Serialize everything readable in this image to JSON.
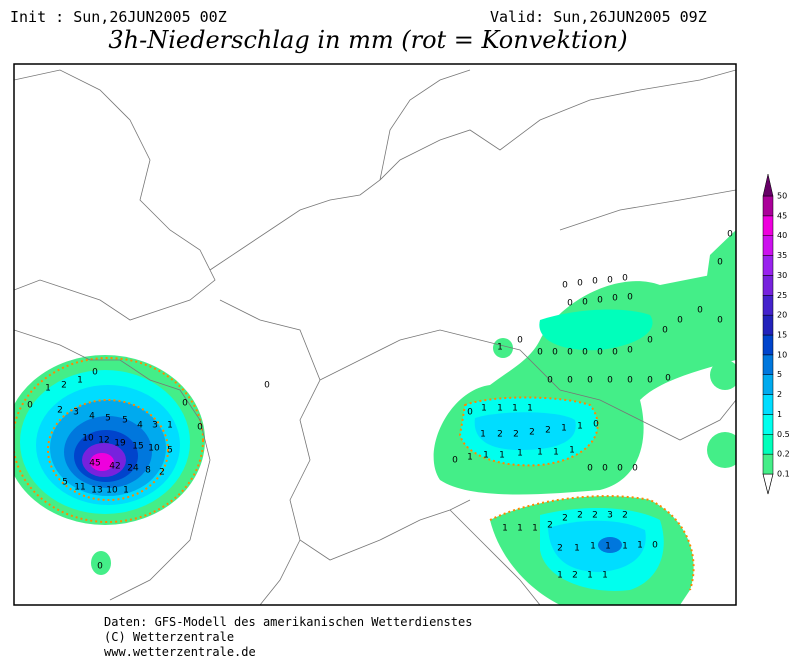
{
  "header": {
    "init": "Init : Sun,26JUN2005 00Z",
    "valid": "Valid: Sun,26JUN2005 09Z",
    "title": "3h-Niederschlag in mm (rot = Konvektion)"
  },
  "colorbar": {
    "levels": [
      0.1,
      0.2,
      0.5,
      1,
      2,
      5,
      10,
      15,
      20,
      25,
      30,
      35,
      40,
      45,
      50
    ],
    "colors": [
      "#44ee88",
      "#00ffbb",
      "#00ffee",
      "#00ddff",
      "#00aaee",
      "#0077dd",
      "#0044cc",
      "#2222bb",
      "#4422cc",
      "#7722dd",
      "#9922ee",
      "#cc11ee",
      "#ee00dd",
      "#aa0099",
      "#660066"
    ]
  },
  "map_labels": [
    0,
    1,
    2,
    1,
    0,
    2,
    3,
    4,
    5,
    5,
    4,
    3,
    1,
    10,
    12,
    19,
    15,
    10,
    5,
    45,
    42,
    24,
    8,
    2,
    5,
    11,
    13,
    10,
    1,
    0,
    0,
    0,
    0,
    0,
    1,
    1,
    1,
    1,
    1,
    2,
    2,
    2,
    2,
    1,
    1,
    0,
    0,
    1,
    1,
    1,
    1,
    1,
    1,
    1,
    0,
    0,
    0,
    0,
    0,
    0,
    0,
    0,
    0,
    0,
    0,
    0,
    0,
    0,
    0,
    0,
    0,
    0,
    0,
    0,
    0,
    0,
    0,
    0,
    0,
    0,
    0,
    0,
    0,
    0,
    0,
    0,
    0,
    0,
    0,
    0,
    1,
    1,
    1,
    1,
    2,
    2,
    2,
    2,
    3,
    2,
    2,
    1,
    1,
    1,
    1,
    1,
    0,
    1,
    2,
    1,
    1
  ],
  "footer": [
    "Daten: GFS-Modell des amerikanischen Wetterdienstes",
    "(C) Wetterzentrale",
    "www.wetterzentrale.de"
  ]
}
